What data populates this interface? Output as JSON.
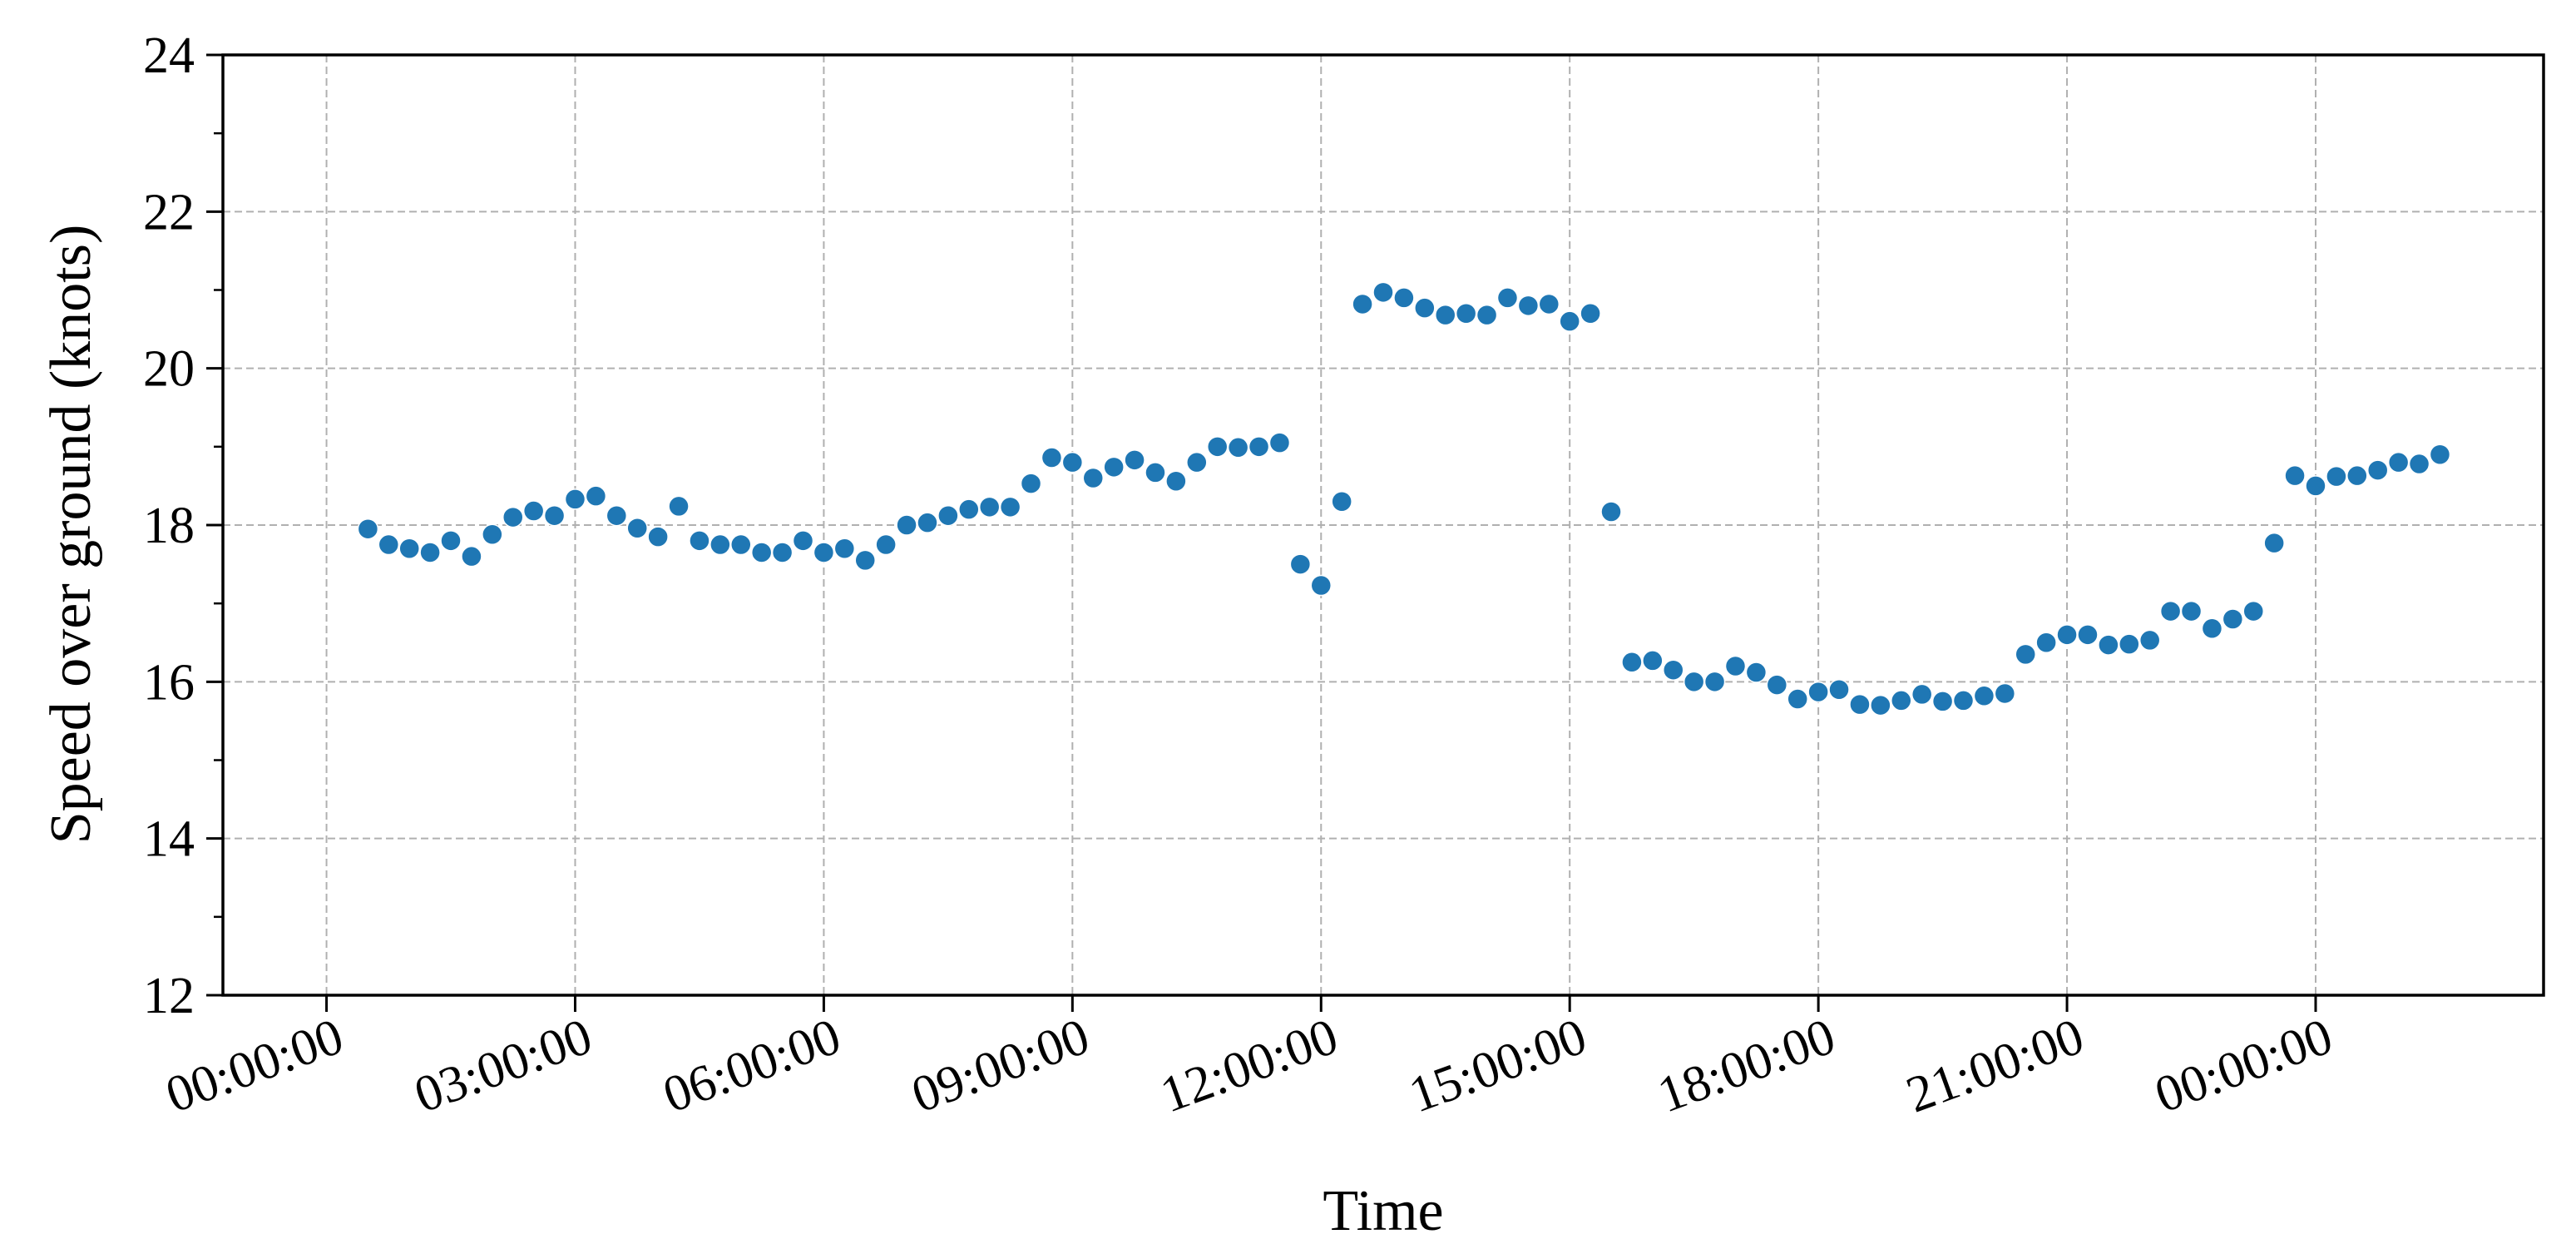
{
  "chart_data": {
    "type": "scatter",
    "title": "",
    "xlabel": "Time",
    "ylabel": "Speed over ground (knots)",
    "x_unit": "hours",
    "xlim": [
      -1.25,
      26.75
    ],
    "ylim": [
      12,
      24
    ],
    "yticks": [
      12,
      14,
      16,
      18,
      20,
      22,
      24
    ],
    "xticks": [
      0,
      3,
      6,
      9,
      12,
      15,
      18,
      21,
      24
    ],
    "xtick_labels": [
      "00:00:00",
      "03:00:00",
      "06:00:00",
      "09:00:00",
      "12:00:00",
      "15:00:00",
      "18:00:00",
      "21:00:00",
      "00:00:00"
    ],
    "grid": true,
    "legend": "none",
    "marker_color": "#1f77b4",
    "series": [
      {
        "x": [
          0.5,
          0.75,
          1.0,
          1.25,
          1.5,
          1.75,
          2.0,
          2.25,
          2.5,
          2.75,
          3.0,
          3.25,
          3.5,
          3.75,
          4.0,
          4.25,
          4.5,
          4.75,
          5.0,
          5.25,
          5.5,
          5.75,
          6.0,
          6.25,
          6.5,
          6.75,
          7.0,
          7.25,
          7.5,
          7.75,
          8.0,
          8.25,
          8.5,
          8.75,
          9.0,
          9.25,
          9.5,
          9.75,
          10.0,
          10.25,
          10.5,
          10.75,
          11.0,
          11.25,
          11.5,
          11.75,
          12.0,
          12.25,
          12.5,
          12.75,
          13.0,
          13.25,
          13.5,
          13.75,
          14.0,
          14.25,
          14.5,
          14.75,
          15.0,
          15.25,
          15.5,
          15.75,
          16.0,
          16.25,
          16.5,
          16.75,
          17.0,
          17.25,
          17.5,
          17.75,
          18.0,
          18.25,
          18.5,
          18.75,
          19.0,
          19.25,
          19.5,
          19.75,
          20.0,
          20.25,
          20.5,
          20.75,
          21.0,
          21.25,
          21.5,
          21.75,
          22.0,
          22.25,
          22.5,
          22.75,
          23.0,
          23.25,
          23.5,
          23.75,
          24.0,
          24.25,
          24.5,
          24.75,
          25.0,
          25.25,
          25.5
        ],
        "y": [
          17.95,
          17.75,
          17.7,
          17.65,
          17.8,
          17.6,
          17.88,
          18.1,
          18.18,
          18.12,
          18.33,
          18.37,
          18.12,
          17.96,
          17.85,
          18.24,
          17.8,
          17.75,
          17.75,
          17.65,
          17.65,
          17.8,
          17.65,
          17.7,
          17.55,
          17.75,
          18.0,
          18.03,
          18.12,
          18.2,
          18.23,
          18.23,
          18.53,
          18.86,
          18.8,
          18.6,
          18.74,
          18.83,
          18.67,
          18.56,
          18.8,
          19.0,
          18.99,
          19.0,
          19.05,
          17.5,
          17.23,
          18.3,
          20.82,
          20.97,
          20.9,
          20.77,
          20.68,
          20.7,
          20.68,
          20.9,
          20.8,
          20.82,
          20.6,
          20.7,
          18.17,
          16.25,
          16.27,
          16.15,
          16.0,
          16.0,
          16.2,
          16.12,
          15.96,
          15.78,
          15.87,
          15.9,
          15.71,
          15.7,
          15.76,
          15.84,
          15.75,
          15.76,
          15.82,
          15.85,
          16.35,
          16.5,
          16.6,
          16.6,
          16.47,
          16.48,
          16.53,
          16.9,
          16.9,
          16.68,
          16.8,
          16.9,
          17.77,
          18.63,
          18.5,
          18.62,
          18.63,
          18.7,
          18.8,
          18.78,
          18.9
        ]
      }
    ]
  }
}
